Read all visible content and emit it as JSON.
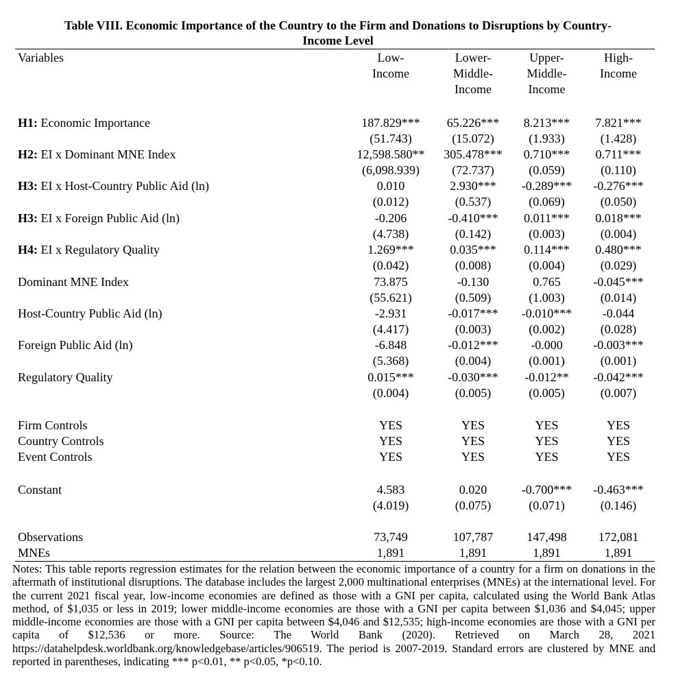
{
  "table": {
    "title_line1": "Table VIII. Economic Importance of the Country to the Firm and Donations to Disruptions by Country-",
    "title_line2": "Income Level",
    "variables_label": "Variables",
    "columns": [
      "Low-\nIncome",
      "Lower-\nMiddle-\nIncome",
      "Upper-\nMiddle-\nIncome",
      "High-\nIncome"
    ],
    "rows": [
      {
        "prefix": "H1:",
        "label": " Economic Importance",
        "values": [
          "187.829***",
          "65.226***",
          "8.213***",
          "7.821***"
        ]
      },
      {
        "prefix": "",
        "label": "",
        "values": [
          "(51.743)",
          "(15.072)",
          "(1.933)",
          "(1.428)"
        ]
      },
      {
        "prefix": "H2:",
        "label": " EI x Dominant MNE Index",
        "values": [
          "12,598.580**",
          "305.478***",
          "0.710***",
          "0.711***"
        ]
      },
      {
        "prefix": "",
        "label": "",
        "values": [
          "(6,098.939)",
          "(72.737)",
          "(0.059)",
          "(0.110)"
        ]
      },
      {
        "prefix": "H3:",
        "label": " EI x Host-Country Public Aid (ln)",
        "values": [
          "0.010",
          "2.930***",
          "-0.289***",
          "-0.276***"
        ]
      },
      {
        "prefix": "",
        "label": "",
        "values": [
          "(0.012)",
          "(0.537)",
          "(0.069)",
          "(0.050)"
        ]
      },
      {
        "prefix": "H3:",
        "label": " EI x Foreign Public Aid (ln)",
        "values": [
          "-0.206",
          "-0.410***",
          "0.011***",
          "0.018***"
        ]
      },
      {
        "prefix": "",
        "label": "",
        "values": [
          "(4.738)",
          "(0.142)",
          "(0.003)",
          "(0.004)"
        ]
      },
      {
        "prefix": "H4:",
        "label": " EI x Regulatory Quality",
        "values": [
          "1.269***",
          "0.035***",
          "0.114***",
          "0.480***"
        ]
      },
      {
        "prefix": "",
        "label": "",
        "values": [
          "(0.042)",
          "(0.008)",
          "(0.004)",
          "(0.029)"
        ]
      },
      {
        "prefix": "",
        "label": "Dominant MNE Index",
        "values": [
          "73.875",
          "-0.130",
          "0.765",
          "-0.045***"
        ]
      },
      {
        "prefix": "",
        "label": "",
        "values": [
          "(55.621)",
          "(0.509)",
          "(1.003)",
          "(0.014)"
        ]
      },
      {
        "prefix": "",
        "label": "Host-Country Public Aid (ln)",
        "values": [
          "-2.931",
          "-0.017***",
          "-0.010***",
          "-0.044"
        ]
      },
      {
        "prefix": "",
        "label": "",
        "values": [
          "(4.417)",
          "(0.003)",
          "(0.002)",
          "(0.028)"
        ]
      },
      {
        "prefix": "",
        "label": "Foreign Public Aid (ln)",
        "values": [
          "-6.848",
          "-0.012***",
          "-0.000",
          "-0.003***"
        ]
      },
      {
        "prefix": "",
        "label": "",
        "values": [
          "(5.368)",
          "(0.004)",
          "(0.001)",
          "(0.001)"
        ]
      },
      {
        "prefix": "",
        "label": "Regulatory Quality",
        "values": [
          "0.015***",
          "-0.030***",
          "-0.012**",
          "-0.042***"
        ]
      },
      {
        "prefix": "",
        "label": "",
        "values": [
          "(0.004)",
          "(0.005)",
          "(0.005)",
          "(0.007)"
        ]
      },
      {
        "prefix": "",
        "label": "Firm Controls",
        "values": [
          "YES",
          "YES",
          "YES",
          "YES"
        ]
      },
      {
        "prefix": "",
        "label": "Country Controls",
        "values": [
          "YES",
          "YES",
          "YES",
          "YES"
        ]
      },
      {
        "prefix": "",
        "label": "Event Controls",
        "values": [
          "YES",
          "YES",
          "YES",
          "YES"
        ]
      },
      {
        "prefix": "",
        "label": "Constant",
        "values": [
          "4.583",
          "0.020",
          "-0.700***",
          "-0.463***"
        ]
      },
      {
        "prefix": "",
        "label": "",
        "values": [
          "(4.019)",
          "(0.075)",
          "(0.071)",
          "(0.146)"
        ]
      },
      {
        "prefix": "",
        "label": "Observations",
        "values": [
          "73,749",
          "107,787",
          "147,498",
          "172,081"
        ]
      },
      {
        "prefix": "",
        "label": "MNEs",
        "values": [
          "1,891",
          "1,891",
          "1,891",
          "1,891"
        ]
      }
    ],
    "notes": "Notes: This table reports regression estimates for the relation between the economic importance of a country for a firm on donations in the aftermath of institutional disruptions. The database includes the largest 2,000 multinational enterprises (MNEs) at the international level. For the current 2021 fiscal year, low-income economies are defined as those with a GNI per capita, calculated using the World Bank Atlas method, of $1,035 or less in 2019; lower middle-income economies are those with a GNI per capita between $1,036 and $4,045; upper middle-income economies are those with a GNI per capita between $4,046 and $12,535; high-income economies are those with a GNI per capita of $12,536 or more. Source: The World Bank (2020). Retrieved on March 28, 2021 https://datahelpdesk.worldbank.org/knowledgebase/articles/906519. The period is 2007-2019. Standard errors are clustered by MNE and reported in parentheses, indicating *** p<0.01, ** p<0.05, *p<0.10."
  }
}
